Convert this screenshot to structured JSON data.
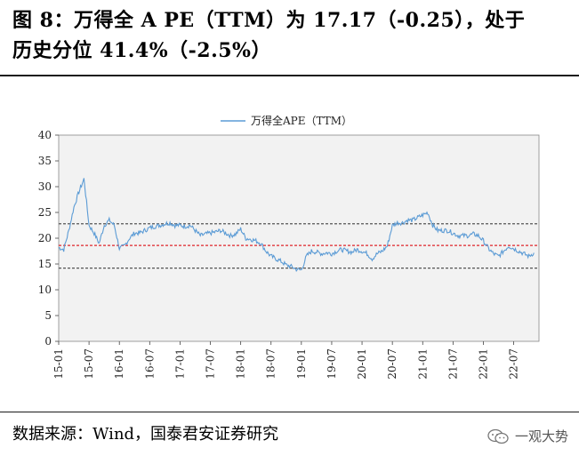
{
  "title": {
    "line1": "图 8：万得全 A PE（TTM）为 17.17（-0.25），处于",
    "line2": "历史分位 41.4%（-2.5%）"
  },
  "footer": {
    "source": "数据来源：Wind，国泰君安证券研究",
    "watermark": "一观大势"
  },
  "colors": {
    "series": "#5b9bd5",
    "mean_line": "#e0242a",
    "band_line": "#555555",
    "plot_bg": "#f2f2f2"
  },
  "chart_data": {
    "type": "line",
    "title": "",
    "xlabel": "",
    "ylabel": "",
    "legend": "top-center",
    "grid": false,
    "ylim": [
      0,
      40
    ],
    "yticks": [
      0,
      5,
      10,
      15,
      20,
      25,
      30,
      35,
      40
    ],
    "xticks": [
      "15-01",
      "15-07",
      "16-01",
      "16-07",
      "17-01",
      "17-07",
      "18-01",
      "18-07",
      "19-01",
      "19-07",
      "20-01",
      "20-07",
      "21-01",
      "21-07",
      "22-01",
      "22-07"
    ],
    "series": [
      {
        "name": "万得全APE（TTM）",
        "x": [
          "2015-01",
          "2015-02",
          "2015-03",
          "2015-04",
          "2015-05",
          "2015-06",
          "2015-07",
          "2015-08",
          "2015-09",
          "2015-10",
          "2015-11",
          "2015-12",
          "2016-01",
          "2016-02",
          "2016-03",
          "2016-04",
          "2016-05",
          "2016-06",
          "2016-07",
          "2016-08",
          "2016-09",
          "2016-10",
          "2016-11",
          "2016-12",
          "2017-01",
          "2017-02",
          "2017-03",
          "2017-04",
          "2017-05",
          "2017-06",
          "2017-07",
          "2017-08",
          "2017-09",
          "2017-10",
          "2017-11",
          "2017-12",
          "2018-01",
          "2018-02",
          "2018-03",
          "2018-04",
          "2018-05",
          "2018-06",
          "2018-07",
          "2018-08",
          "2018-09",
          "2018-10",
          "2018-11",
          "2018-12",
          "2019-01",
          "2019-02",
          "2019-03",
          "2019-04",
          "2019-05",
          "2019-06",
          "2019-07",
          "2019-08",
          "2019-09",
          "2019-10",
          "2019-11",
          "2019-12",
          "2020-01",
          "2020-02",
          "2020-03",
          "2020-04",
          "2020-05",
          "2020-06",
          "2020-07",
          "2020-08",
          "2020-09",
          "2020-10",
          "2020-11",
          "2020-12",
          "2021-01",
          "2021-02",
          "2021-03",
          "2021-04",
          "2021-05",
          "2021-06",
          "2021-07",
          "2021-08",
          "2021-09",
          "2021-10",
          "2021-11",
          "2021-12",
          "2022-01",
          "2022-02",
          "2022-03",
          "2022-04",
          "2022-05",
          "2022-06",
          "2022-07",
          "2022-08",
          "2022-09",
          "2022-10",
          "2022-11"
        ],
        "values": [
          18.2,
          17.8,
          21.5,
          26.0,
          29.0,
          31.5,
          22.5,
          21.0,
          19.0,
          22.5,
          23.5,
          22.5,
          18.0,
          18.5,
          20.0,
          21.0,
          21.0,
          21.5,
          22.0,
          22.3,
          22.5,
          22.8,
          23.0,
          22.5,
          22.5,
          22.3,
          22.5,
          21.5,
          20.5,
          20.8,
          21.0,
          21.2,
          21.5,
          21.0,
          20.5,
          20.8,
          21.8,
          20.0,
          19.8,
          19.5,
          19.0,
          17.5,
          16.5,
          16.0,
          15.5,
          14.8,
          14.5,
          14.0,
          13.8,
          16.5,
          17.5,
          17.3,
          17.0,
          17.2,
          17.0,
          17.5,
          17.8,
          17.5,
          17.3,
          17.8,
          17.5,
          17.0,
          16.0,
          17.0,
          17.5,
          18.5,
          22.5,
          23.0,
          23.0,
          23.5,
          23.5,
          24.0,
          24.5,
          25.0,
          22.5,
          21.5,
          21.5,
          21.5,
          21.0,
          20.5,
          20.5,
          20.5,
          20.8,
          20.5,
          19.5,
          18.0,
          17.0,
          16.5,
          17.5,
          18.5,
          18.0,
          17.5,
          17.0,
          16.5,
          17.17
        ]
      }
    ],
    "reference_lines": [
      {
        "label": "mean",
        "y": 18.6,
        "style": "dashed",
        "color": "#e0242a"
      },
      {
        "label": "+1std",
        "y": 22.8,
        "style": "dashed",
        "color": "#555555"
      },
      {
        "label": "-1std",
        "y": 14.2,
        "style": "dashed",
        "color": "#555555"
      }
    ]
  }
}
